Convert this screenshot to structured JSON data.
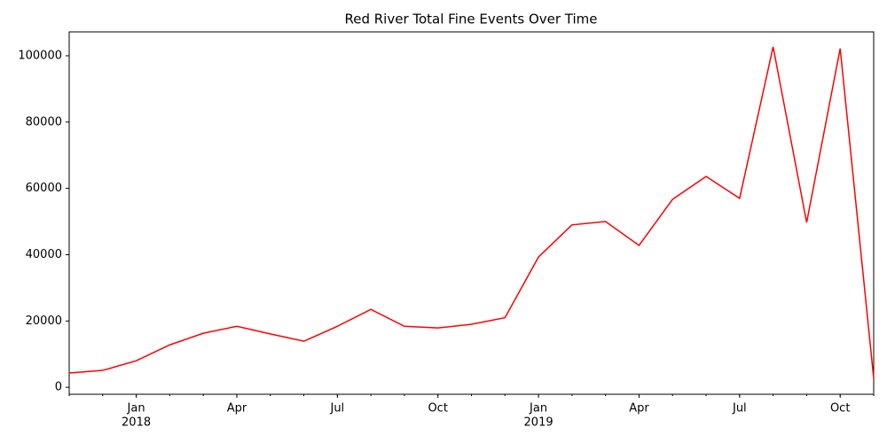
{
  "chart_data": {
    "type": "line",
    "title": "Red River Total Fine Events Over Time",
    "x": [
      "2017-11",
      "2017-12",
      "2018-01",
      "2018-02",
      "2018-03",
      "2018-04",
      "2018-05",
      "2018-06",
      "2018-07",
      "2018-08",
      "2018-09",
      "2018-10",
      "2018-11",
      "2018-12",
      "2019-01",
      "2019-02",
      "2019-03",
      "2019-04",
      "2019-05",
      "2019-06",
      "2019-07",
      "2019-08",
      "2019-09",
      "2019-10",
      "2019-11"
    ],
    "series": [
      {
        "name": "Red River",
        "color": "#ff0000",
        "values": [
          4300,
          5100,
          8000,
          12800,
          16300,
          18400,
          16100,
          13900,
          18400,
          23500,
          18400,
          17900,
          19000,
          21000,
          39300,
          49000,
          50000,
          42800,
          56700,
          63600,
          57000,
          102700,
          49700,
          102200,
          2700
        ]
      }
    ],
    "xlim": [
      "2017-11",
      "2019-11"
    ],
    "xticks": [
      {
        "value": "2018-01",
        "label": "Jan"
      },
      {
        "value": "2018-04",
        "label": "Apr"
      },
      {
        "value": "2018-07",
        "label": "Jul"
      },
      {
        "value": "2018-10",
        "label": "Oct"
      },
      {
        "value": "2019-01",
        "label": "Jan"
      },
      {
        "value": "2019-04",
        "label": "Apr"
      },
      {
        "value": "2019-07",
        "label": "Jul"
      },
      {
        "value": "2019-10",
        "label": "Oct"
      }
    ],
    "xyears": [
      {
        "value": "2018-01",
        "label": "2018"
      },
      {
        "value": "2019-01",
        "label": "2019"
      }
    ],
    "ylim": [
      -2100,
      107200
    ],
    "yticks": [
      0,
      20000,
      40000,
      60000,
      80000,
      100000
    ],
    "grid": false
  }
}
